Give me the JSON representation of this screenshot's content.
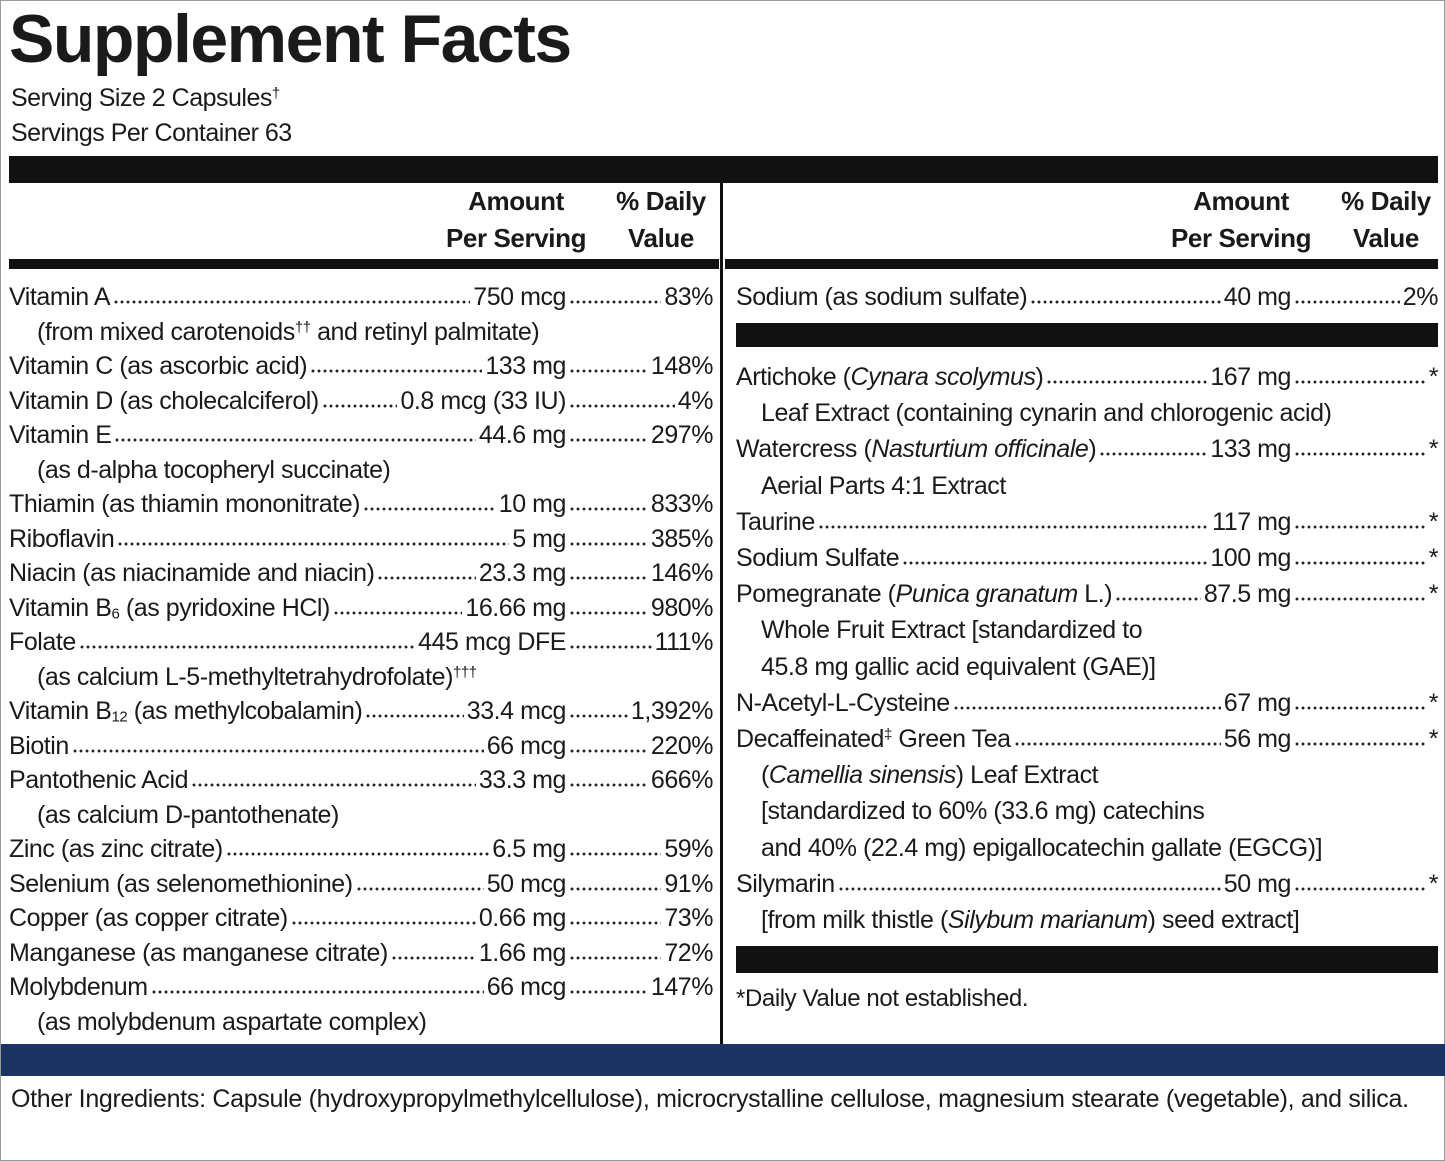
{
  "title": "Supplement Facts",
  "serving_size": [
    "Serving Size 2 Capsules",
    {
      "text": "†",
      "sup": true
    }
  ],
  "servings_per_container": "Servings Per Container 63",
  "column_headers": {
    "amount": [
      "Amount",
      "Per Serving"
    ],
    "daily_value": [
      "% Daily",
      "Value"
    ]
  },
  "left_rows": [
    {
      "name": "Vitamin A",
      "amount": "750 mcg",
      "daily_value": "83%",
      "notes": [
        [
          "(from mixed carotenoids",
          {
            "text": "††",
            "sup": true
          },
          " and retinyl palmitate)"
        ]
      ]
    },
    {
      "name": "Vitamin C (as ascorbic acid)",
      "amount": "133 mg",
      "daily_value": "148%"
    },
    {
      "name": "Vitamin D (as cholecalciferol)",
      "amount": "0.8 mcg (33 IU)",
      "daily_value": "4%"
    },
    {
      "name": "Vitamin E",
      "amount": "44.6 mg",
      "daily_value": "297%",
      "notes": [
        "(as d-alpha tocopheryl succinate)"
      ]
    },
    {
      "name": "Thiamin (as thiamin mononitrate)",
      "amount": "10 mg",
      "daily_value": "833%"
    },
    {
      "name": "Riboflavin",
      "amount": "5 mg",
      "daily_value": "385%"
    },
    {
      "name": "Niacin (as niacinamide and niacin)",
      "amount": "23.3 mg",
      "daily_value": "146%"
    },
    {
      "name": [
        "Vitamin B",
        {
          "text": "6",
          "sub": true
        },
        " (as pyridoxine HCl)"
      ],
      "amount": "16.66 mg",
      "daily_value": "980%"
    },
    {
      "name": "Folate",
      "amount": "445 mcg DFE",
      "daily_value": "111%",
      "notes": [
        [
          "(as calcium L-5-methyltetrahydrofolate)",
          {
            "text": "†††",
            "sup": true
          }
        ]
      ]
    },
    {
      "name": [
        "Vitamin B",
        {
          "text": "12",
          "sub": true
        },
        " (as methylcobalamin)"
      ],
      "amount": "33.4 mcg",
      "daily_value": "1,392%"
    },
    {
      "name": "Biotin",
      "amount": "66 mcg",
      "daily_value": "220%"
    },
    {
      "name": "Pantothenic Acid",
      "amount": "33.3 mg",
      "daily_value": "666%",
      "notes": [
        "(as calcium D-pantothenate)"
      ]
    },
    {
      "name": "Zinc (as zinc citrate)",
      "amount": "6.5 mg",
      "daily_value": "59%"
    },
    {
      "name": "Selenium (as selenomethionine)",
      "amount": "50 mcg",
      "daily_value": "91%"
    },
    {
      "name": "Copper (as copper citrate)",
      "amount": "0.66 mg",
      "daily_value": "73%"
    },
    {
      "name": "Manganese (as manganese citrate)",
      "amount": "1.66 mg",
      "daily_value": "72%"
    },
    {
      "name": "Molybdenum",
      "amount": "66 mcg",
      "daily_value": "147%",
      "notes": [
        "(as molybdenum aspartate complex)"
      ]
    }
  ],
  "right_rows_top": [
    {
      "name": "Sodium (as sodium sulfate)",
      "amount": "40 mg",
      "daily_value": "2%"
    }
  ],
  "right_rows": [
    {
      "name": [
        "Artichoke (",
        {
          "text": "Cynara scolymus",
          "italic": true
        },
        ")"
      ],
      "amount": "167 mg",
      "daily_value": "*",
      "notes": [
        "Leaf Extract (containing cynarin and chlorogenic acid)"
      ]
    },
    {
      "name": [
        "Watercress (",
        {
          "text": "Nasturtium officinale",
          "italic": true
        },
        ")"
      ],
      "amount": "133 mg",
      "daily_value": "*",
      "notes": [
        "Aerial Parts 4:1 Extract"
      ]
    },
    {
      "name": "Taurine",
      "amount": "117 mg",
      "daily_value": "*"
    },
    {
      "name": "Sodium Sulfate",
      "amount": "100 mg",
      "daily_value": "*"
    },
    {
      "name": [
        "Pomegranate (",
        {
          "text": "Punica granatum",
          "italic": true
        },
        " L.)"
      ],
      "amount": "87.5 mg",
      "daily_value": "*",
      "notes": [
        "Whole Fruit Extract [standardized to",
        "45.8 mg gallic acid equivalent (GAE)]"
      ]
    },
    {
      "name": "N-Acetyl-L-Cysteine",
      "amount": "67 mg",
      "daily_value": "*"
    },
    {
      "name": [
        "Decaffeinated",
        {
          "text": "‡",
          "sup": true
        },
        " Green Tea"
      ],
      "amount": "56 mg",
      "daily_value": "*",
      "notes": [
        [
          "(",
          {
            "text": "Camellia sinensis",
            "italic": true
          },
          ") Leaf Extract"
        ],
        "[standardized to 60% (33.6 mg) catechins",
        "and 40% (22.4 mg) epigallocatechin gallate (EGCG)]"
      ]
    },
    {
      "name": "Silymarin",
      "amount": "50 mg",
      "daily_value": "*",
      "notes": [
        [
          "[from milk thistle (",
          {
            "text": "Silybum marianum",
            "italic": true
          },
          ") seed extract]"
        ]
      ]
    }
  ],
  "footnote": "*Daily Value not established.",
  "other_ingredients": "Other Ingredients: Capsule (hydroxypropylmethylcellulose), microcrystalline cellulose, magnesium stearate (vegetable), and silica."
}
